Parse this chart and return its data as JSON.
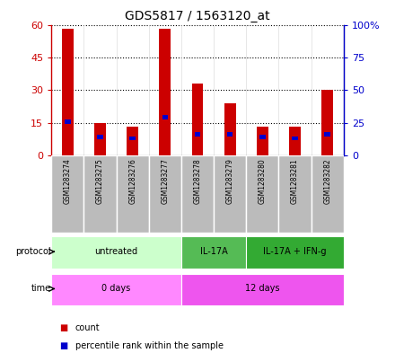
{
  "title": "GDS5817 / 1563120_at",
  "samples": [
    "GSM1283274",
    "GSM1283275",
    "GSM1283276",
    "GSM1283277",
    "GSM1283278",
    "GSM1283279",
    "GSM1283280",
    "GSM1283281",
    "GSM1283282"
  ],
  "counts": [
    58,
    15,
    13,
    58,
    33,
    24,
    13,
    13,
    30
  ],
  "percentile_ranks": [
    26,
    14,
    13,
    29,
    16,
    16,
    14,
    13,
    16
  ],
  "count_color": "#cc0000",
  "percentile_color": "#0000cc",
  "ylim_left": [
    0,
    60
  ],
  "ylim_right": [
    0,
    100
  ],
  "yticks_left": [
    0,
    15,
    30,
    45,
    60
  ],
  "yticks_right": [
    0,
    25,
    50,
    75,
    100
  ],
  "ytick_labels_right": [
    "0",
    "25",
    "50",
    "75",
    "100%"
  ],
  "protocol_groups": [
    {
      "label": "untreated",
      "start": 0,
      "end": 4,
      "color": "#ccffcc"
    },
    {
      "label": "IL-17A",
      "start": 4,
      "end": 6,
      "color": "#55bb55"
    },
    {
      "label": "IL-17A + IFN-g",
      "start": 6,
      "end": 9,
      "color": "#33aa33"
    }
  ],
  "time_groups": [
    {
      "label": "0 days",
      "start": 0,
      "end": 4,
      "color": "#ff88ff"
    },
    {
      "label": "12 days",
      "start": 4,
      "end": 9,
      "color": "#ee55ee"
    }
  ],
  "bar_width": 0.35,
  "blue_bar_width": 0.18,
  "sample_bg_color": "#bbbbbb",
  "background_color": "#ffffff"
}
